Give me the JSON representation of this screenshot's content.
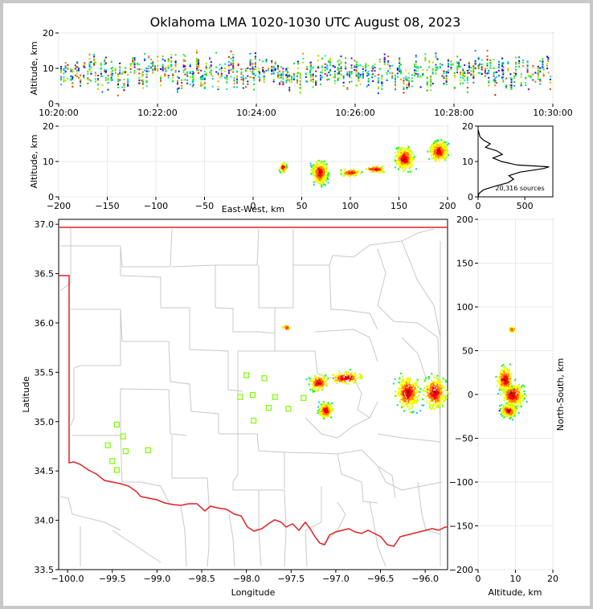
{
  "figure": {
    "title": "Oklahoma LMA 1020-1030 UTC August 08, 2023"
  },
  "chart_data": [
    {
      "id": "time-height",
      "type": "scatter",
      "x_kind": "time",
      "ylabel": "Altitude, km",
      "ylim": [
        0,
        20
      ],
      "yticks": [
        0,
        10,
        20
      ],
      "xlim": [
        "10:20:00",
        "10:30:00"
      ],
      "xticks": [
        "10:20:00",
        "10:22:00",
        "10:24:00",
        "10:26:00",
        "10:28:00",
        "10:30:00"
      ],
      "grid": true,
      "point_coloring": "time (rainbow)"
    },
    {
      "id": "ew-height",
      "type": "heatmap",
      "xlabel": "East-West, km",
      "ylabel": "Altitude, km",
      "xlim": [
        -200,
        200
      ],
      "xticks": [
        -200,
        -150,
        -100,
        -50,
        0,
        50,
        100,
        150,
        200
      ],
      "ylim": [
        0,
        20
      ],
      "yticks": [
        0,
        10,
        20
      ],
      "grid": true,
      "clusters": [
        {
          "x": 30,
          "y": 8.5
        },
        {
          "x": 68,
          "y": 7
        },
        {
          "x": 100,
          "y": 7
        },
        {
          "x": 125,
          "y": 8
        },
        {
          "x": 155,
          "y": 11
        },
        {
          "x": 190,
          "y": 13
        }
      ]
    },
    {
      "id": "alt-histogram",
      "type": "line",
      "xlim": [
        0,
        800
      ],
      "xticks": [
        0,
        500
      ],
      "ylim": [
        0,
        20
      ],
      "yticks": [
        0,
        10,
        20
      ],
      "annotation": "20,316 sources",
      "profile": [
        {
          "count": 0,
          "alt": 0
        },
        {
          "count": 10,
          "alt": 1
        },
        {
          "count": 60,
          "alt": 2
        },
        {
          "count": 180,
          "alt": 3
        },
        {
          "count": 320,
          "alt": 4
        },
        {
          "count": 380,
          "alt": 5
        },
        {
          "count": 330,
          "alt": 6
        },
        {
          "count": 450,
          "alt": 7
        },
        {
          "count": 700,
          "alt": 8
        },
        {
          "count": 760,
          "alt": 8.5
        },
        {
          "count": 420,
          "alt": 9
        },
        {
          "count": 250,
          "alt": 10
        },
        {
          "count": 160,
          "alt": 11
        },
        {
          "count": 260,
          "alt": 12
        },
        {
          "count": 200,
          "alt": 13
        },
        {
          "count": 80,
          "alt": 14
        },
        {
          "count": 130,
          "alt": 15
        },
        {
          "count": 60,
          "alt": 16
        },
        {
          "count": 20,
          "alt": 17
        },
        {
          "count": 10,
          "alt": 18
        },
        {
          "count": 0,
          "alt": 19
        }
      ]
    },
    {
      "id": "plan-view",
      "type": "scatter",
      "xlabel": "Longitude",
      "ylabel": "Latitude",
      "xlim": [
        -100.1,
        -95.75
      ],
      "xticks": [
        -100.0,
        -99.5,
        -99.0,
        -98.5,
        -98.0,
        -97.5,
        -97.0,
        -96.5,
        -96.0
      ],
      "ylim": [
        33.5,
        37.05
      ],
      "yticks": [
        33.5,
        34.0,
        34.5,
        35.0,
        35.5,
        36.0,
        36.5,
        37.0
      ],
      "grid": false,
      "clusters": [
        {
          "lon": -97.12,
          "lat": 35.12
        },
        {
          "lon": -97.2,
          "lat": 35.4
        },
        {
          "lon": -96.9,
          "lat": 35.45
        },
        {
          "lon": -96.2,
          "lat": 35.3
        },
        {
          "lon": -95.9,
          "lat": 35.3
        },
        {
          "lon": -97.56,
          "lat": 35.96
        }
      ],
      "stations": [
        {
          "lon": -99.45,
          "lat": 34.97
        },
        {
          "lon": -99.38,
          "lat": 34.85
        },
        {
          "lon": -99.55,
          "lat": 34.76
        },
        {
          "lon": -99.35,
          "lat": 34.7
        },
        {
          "lon": -99.1,
          "lat": 34.71
        },
        {
          "lon": -99.5,
          "lat": 34.6
        },
        {
          "lon": -99.45,
          "lat": 34.51
        },
        {
          "lon": -98.0,
          "lat": 35.47
        },
        {
          "lon": -97.8,
          "lat": 35.44
        },
        {
          "lon": -98.07,
          "lat": 35.25
        },
        {
          "lon": -97.93,
          "lat": 35.27
        },
        {
          "lon": -97.68,
          "lat": 35.25
        },
        {
          "lon": -97.36,
          "lat": 35.24
        },
        {
          "lon": -97.75,
          "lat": 35.14
        },
        {
          "lon": -97.53,
          "lat": 35.13
        },
        {
          "lon": -97.92,
          "lat": 35.01
        }
      ]
    },
    {
      "id": "ns-height",
      "type": "heatmap",
      "xlabel": "Altitude, km",
      "ylabel": "North-South, km",
      "xlim": [
        0,
        20
      ],
      "xticks": [
        0,
        10,
        20
      ],
      "ylim": [
        -200,
        200
      ],
      "yticks": [
        -200,
        -150,
        -100,
        -50,
        0,
        50,
        100,
        150,
        200
      ],
      "grid": true,
      "clusters": [
        {
          "alt": 8,
          "y": -18
        },
        {
          "alt": 9,
          "y": 0
        },
        {
          "alt": 7,
          "y": 18
        },
        {
          "alt": 9,
          "y": 75
        }
      ]
    }
  ]
}
